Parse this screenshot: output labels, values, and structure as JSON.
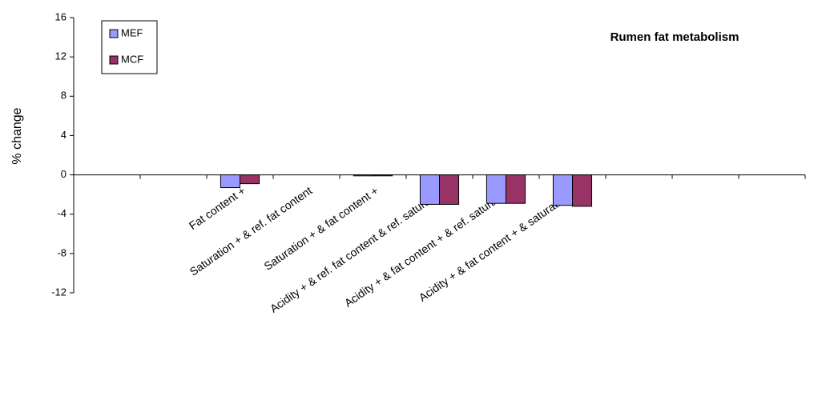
{
  "chart_data": {
    "type": "bar",
    "title": "Rumen fat metabolism",
    "y_label": "% change",
    "categories": [
      null,
      null,
      "Fat content +",
      "Saturation + & ref. fat content",
      "Saturation + & fat content +",
      "Acidity + & ref. fat content & ref. saturation",
      "Acidity + & fat content + & ref. saturation",
      "Acidity + & fat content + & saturation +",
      null,
      null,
      null
    ],
    "series": [
      {
        "name": "MEF",
        "color": "#9999ff",
        "values": [
          null,
          null,
          -1.3,
          null,
          -0.1,
          -3.0,
          -2.9,
          -3.1,
          null,
          null,
          null
        ]
      },
      {
        "name": "MCF",
        "color": "#993366",
        "values": [
          null,
          null,
          -0.9,
          null,
          -0.1,
          -3.0,
          -2.9,
          -3.2,
          null,
          null,
          null
        ]
      }
    ],
    "ylim": [
      -12,
      16
    ],
    "yticks": [
      -12,
      -8,
      -4,
      0,
      4,
      8,
      12,
      16
    ],
    "grid": false,
    "legend": "upper-left"
  }
}
